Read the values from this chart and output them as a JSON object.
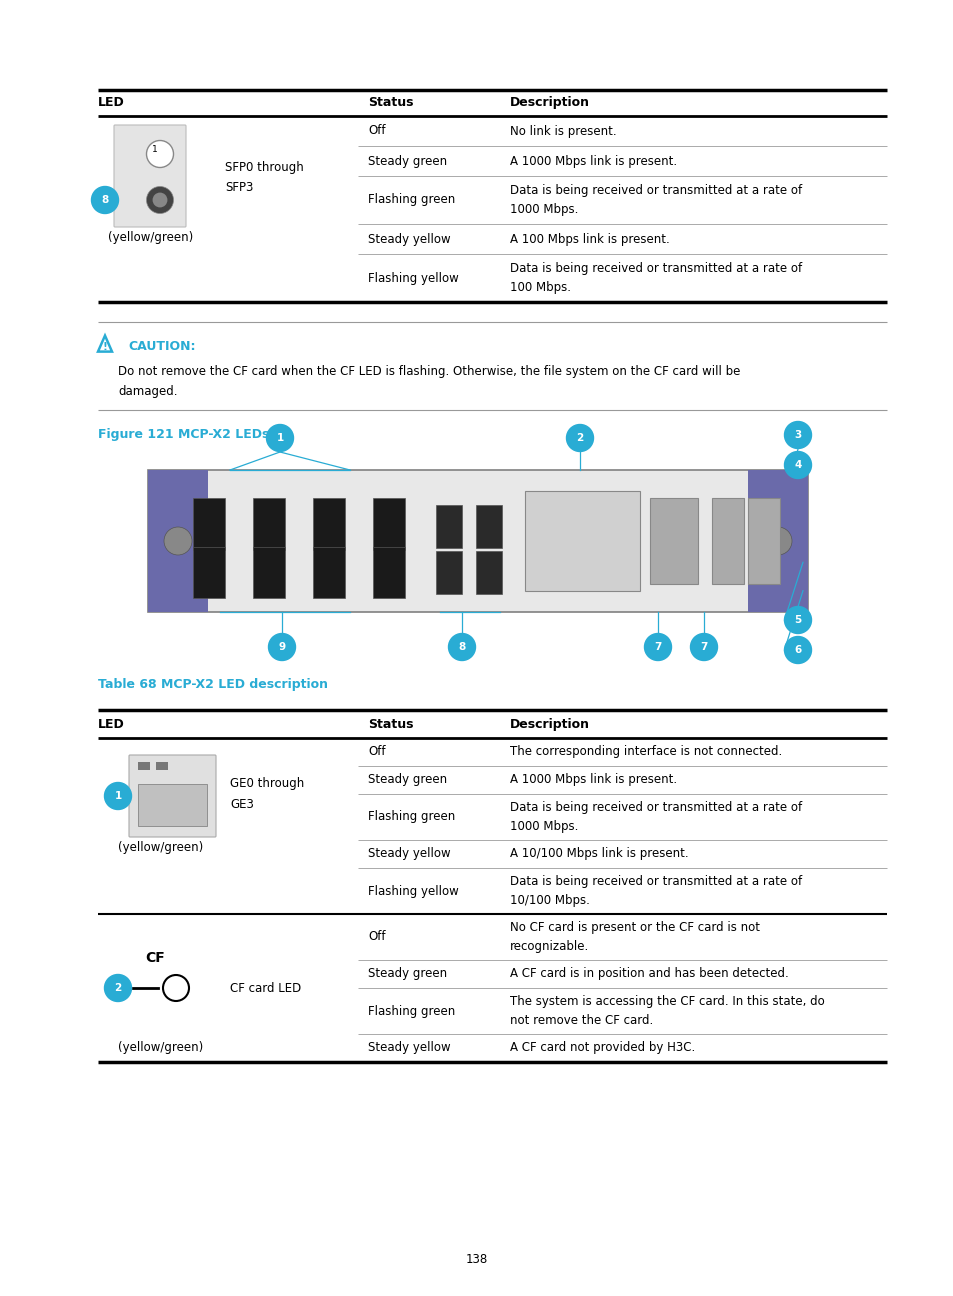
{
  "page_number": "138",
  "bg_color": "#ffffff",
  "cyan_color": "#29acd4",
  "black": "#000000",
  "table1": {
    "header": [
      "LED",
      "Status",
      "Description"
    ],
    "rows": [
      {
        "status": "Off",
        "desc": "No link is present.",
        "multiline": false
      },
      {
        "status": "Steady green",
        "desc": "A 1000 Mbps link is present.",
        "multiline": false
      },
      {
        "status": "Flashing green",
        "desc": "Data is being received or transmitted at a rate of\n1000 Mbps.",
        "multiline": true
      },
      {
        "status": "Steady yellow",
        "desc": "A 100 Mbps link is present.",
        "multiline": false
      },
      {
        "status": "Flashing yellow",
        "desc": "Data is being received or transmitted at a rate of\n100 Mbps.",
        "multiline": true
      }
    ],
    "led_label": "SFP0 through\nSFP3",
    "led_sublabel": "(yellow/green)",
    "led_badge": "8"
  },
  "caution_text_line1": "Do not remove the CF card when the CF LED is flashing. Otherwise, the file system on the CF card will be",
  "caution_text_line2": "damaged.",
  "figure_label": "Figure 121 MCP-X2 LEDs",
  "table2_title": "Table 68 MCP-X2 LED description",
  "table2": {
    "sections": [
      {
        "led_badge": "1",
        "led_label": "GE0 through\nGE3",
        "led_sublabel": "(yellow/green)",
        "rows": [
          {
            "status": "Off",
            "desc": "The corresponding interface is not connected.",
            "multiline": false
          },
          {
            "status": "Steady green",
            "desc": "A 1000 Mbps link is present.",
            "multiline": false
          },
          {
            "status": "Flashing green",
            "desc": "Data is being received or transmitted at a rate of\n1000 Mbps.",
            "multiline": true
          },
          {
            "status": "Steady yellow",
            "desc": "A 10/100 Mbps link is present.",
            "multiline": false
          },
          {
            "status": "Flashing yellow",
            "desc": "Data is being received or transmitted at a rate of\n10/100 Mbps.",
            "multiline": true
          }
        ]
      },
      {
        "led_badge": "2",
        "led_label": "CF card LED",
        "led_sublabel": "(yellow/green)",
        "rows": [
          {
            "status": "Off",
            "desc": "No CF card is present or the CF card is not\nrecognizable.",
            "multiline": true
          },
          {
            "status": "Steady green",
            "desc": "A CF card is in position and has been detected.",
            "multiline": false
          },
          {
            "status": "Flashing green",
            "desc": "The system is accessing the CF card. In this state, do\nnot remove the CF card.",
            "multiline": true
          },
          {
            "status": "Steady yellow",
            "desc": "A CF card not provided by H3C.",
            "multiline": false
          }
        ]
      }
    ]
  }
}
